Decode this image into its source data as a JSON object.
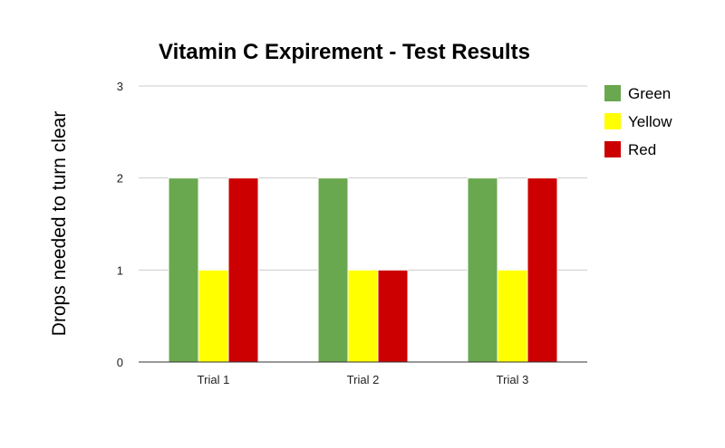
{
  "chart_data": {
    "type": "bar",
    "title": "Vitamin C Expirement - Test Results",
    "xlabel": "",
    "ylabel": "Drops needed to turn clear",
    "categories": [
      "Trial 1",
      "Trial 2",
      "Trial 3"
    ],
    "series": [
      {
        "name": "Green",
        "values": [
          2,
          2,
          2
        ],
        "color": "#6aa84f"
      },
      {
        "name": "Yellow",
        "values": [
          1,
          1,
          1
        ],
        "color": "#ffff00"
      },
      {
        "name": "Red",
        "values": [
          2,
          1,
          2
        ],
        "color": "#cc0000"
      }
    ],
    "ylim": [
      0,
      3
    ],
    "yticks": [
      "0",
      "1",
      "2",
      "3"
    ],
    "grid": true,
    "legend": "right"
  }
}
